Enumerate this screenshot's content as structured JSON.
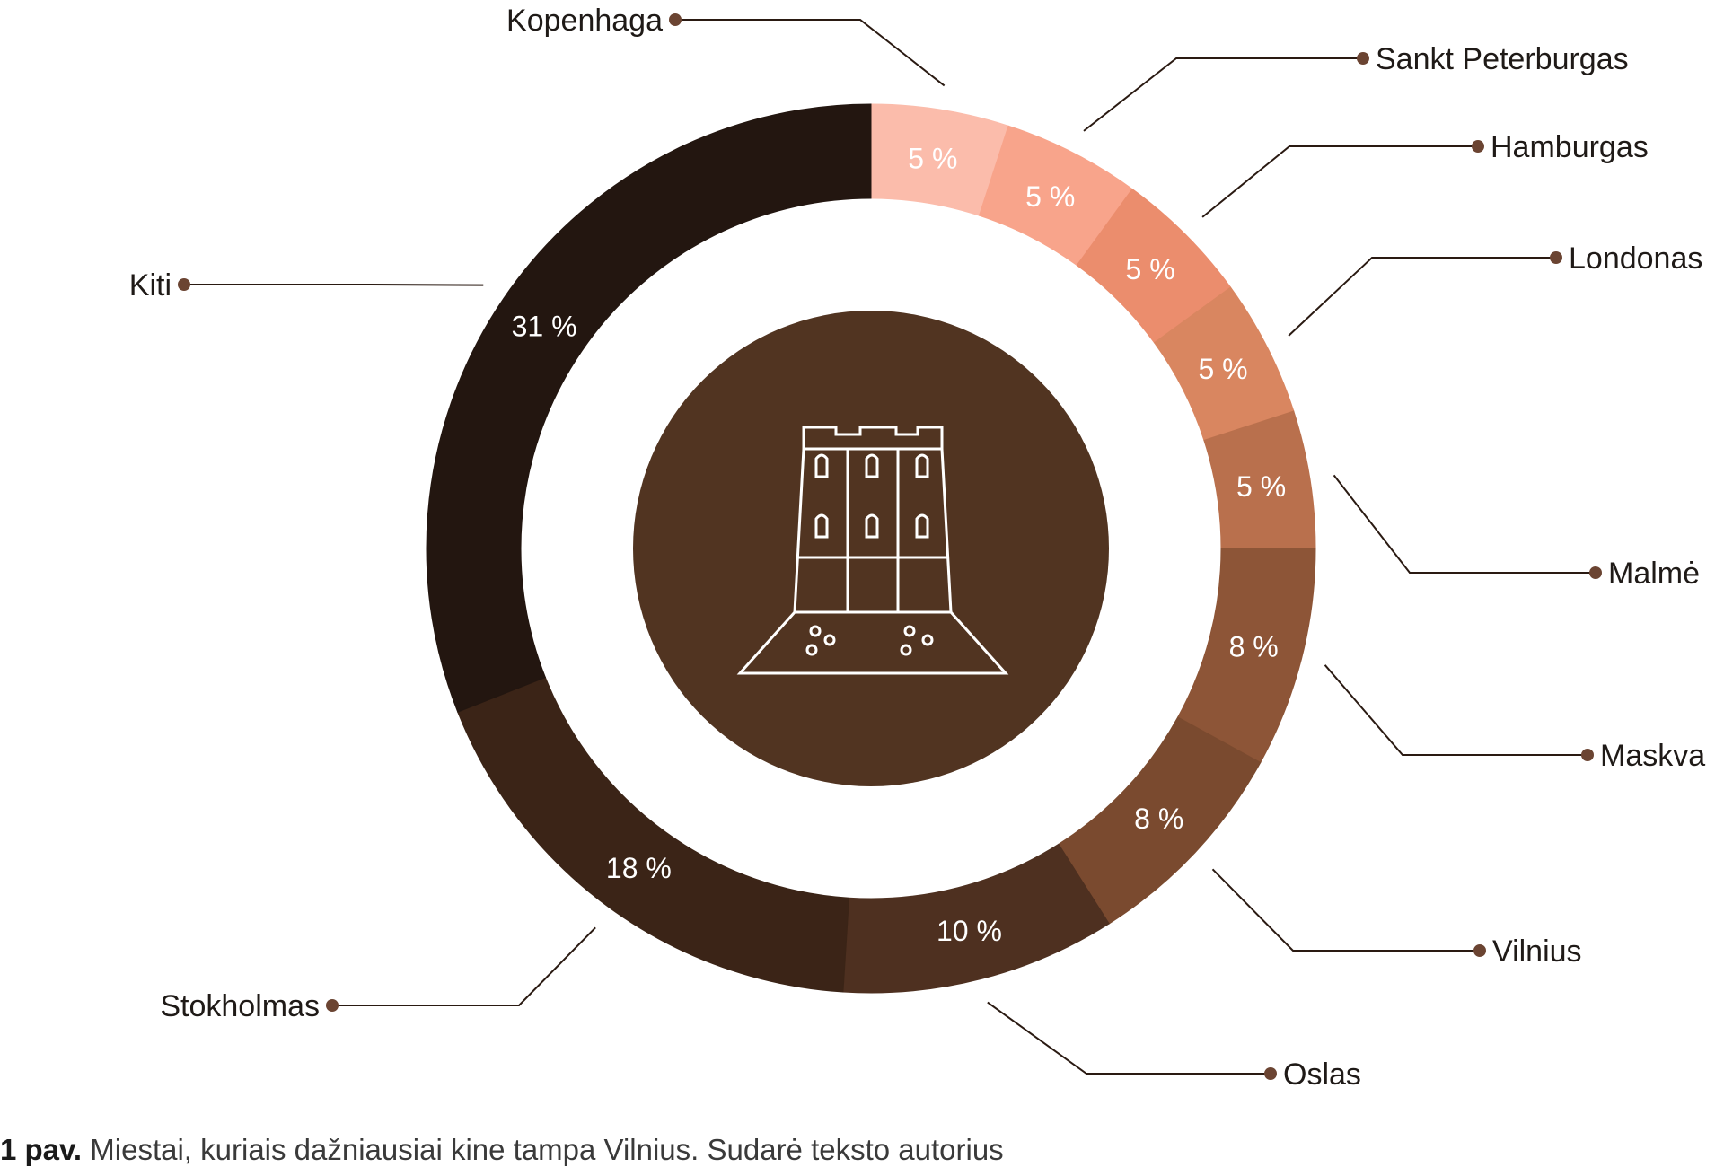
{
  "chart_data": {
    "type": "pie",
    "categories": [
      "Kopenhaga",
      "Sankt Peterburgas",
      "Hamburgas",
      "Londonas",
      "Malmė",
      "Maskva",
      "Vilnius",
      "Oslas",
      "Stokholmas",
      "Kiti"
    ],
    "values": [
      5,
      5,
      5,
      5,
      5,
      8,
      8,
      10,
      18,
      31
    ],
    "value_labels": [
      "5 %",
      "5 %",
      "5 %",
      "5 %",
      "5 %",
      "8 %",
      "8 %",
      "10 %",
      "18 %",
      "31 %"
    ],
    "colors": [
      "#fbbcab",
      "#f8a48b",
      "#eb8d6d",
      "#d98660",
      "#b9704d",
      "#8d5537",
      "#7a4a2f",
      "#4e3020",
      "#3b2417",
      "#231610"
    ],
    "center_color": "#513421",
    "marker_color": "#6b4432",
    "center_icon": "castle-tower-icon"
  },
  "caption": {
    "label": "1 pav.",
    "text": " Miestai, kuriais dažniausiai kine tampa Vilnius. Sudarė teksto autorius"
  }
}
